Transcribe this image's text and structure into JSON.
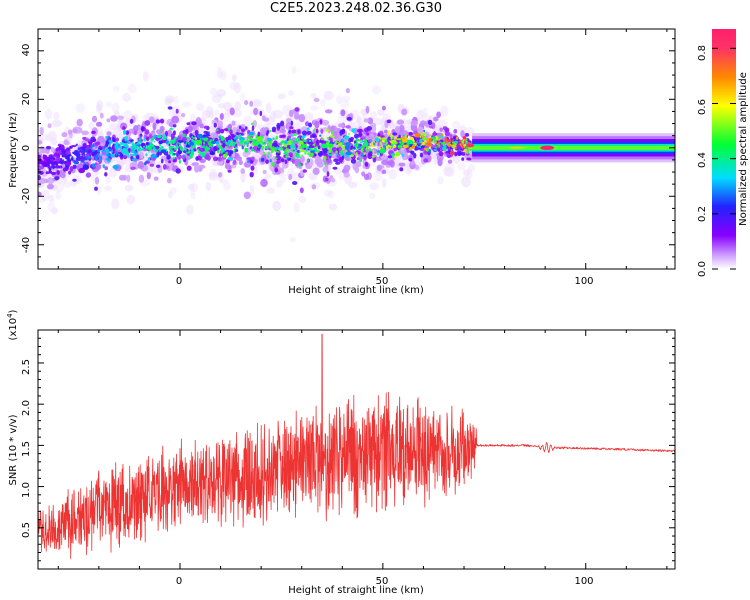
{
  "title": "C2E5.2023.248.02.36.G30",
  "colors": {
    "snr_line": "#ee3333",
    "colormap": [
      "#ffffff",
      "#cc99ff",
      "#8800ff",
      "#2222ff",
      "#00ddff",
      "#00ff33",
      "#ffff00",
      "#ff8800",
      "#ff3366",
      "#ff1f6b"
    ]
  },
  "chart_data": [
    {
      "type": "heatmap",
      "name": "spectrogram",
      "xlabel": "Height of straight line (km)",
      "ylabel": "Frequency (Hz)",
      "xlim": [
        -35,
        122
      ],
      "ylim": [
        -50,
        49
      ],
      "xticks": [
        "0",
        "50",
        "100"
      ],
      "yticks": [
        "40",
        "20",
        "0",
        "-20",
        "-40"
      ],
      "colorbar": {
        "label": "Normalized spectral amplitude",
        "range": [
          0,
          0.87
        ],
        "ticks": [
          "0.0",
          "0.2",
          "0.4",
          "0.6",
          "0.8"
        ]
      },
      "ridge": {
        "x": [
          -35,
          -25,
          -15,
          0,
          15,
          30,
          45,
          60,
          72,
          73,
          90,
          122
        ],
        "center_hz": [
          -7,
          -3,
          0,
          1,
          2,
          0,
          1,
          2,
          1,
          0,
          0,
          0
        ],
        "spread_hz": [
          8,
          9,
          9,
          10,
          11,
          12,
          10,
          7,
          5,
          3,
          3,
          3
        ],
        "peak_amplitude": [
          0.2,
          0.3,
          0.4,
          0.45,
          0.5,
          0.5,
          0.55,
          0.65,
          0.8,
          0.3,
          0.87,
          0.3
        ]
      }
    },
    {
      "type": "line",
      "name": "snr",
      "xlabel": "Height of straight line (km)",
      "ylabel": "SNR (10 * v/v)",
      "multiplier": "(x10",
      "multiplier_exp": "4",
      "multiplier_close": ")",
      "xlim": [
        -35,
        122
      ],
      "ylim": [
        0,
        2.9
      ],
      "xticks": [
        "0",
        "50",
        "100"
      ],
      "yticks": [
        "0.5",
        "1.0",
        "1.5",
        "2.0",
        "2.5"
      ],
      "envelope": {
        "x": [
          -35,
          -25,
          -15,
          0,
          10,
          20,
          30,
          35,
          40,
          50,
          60,
          70,
          73
        ],
        "mean": [
          0.45,
          0.6,
          0.8,
          1.0,
          1.05,
          1.15,
          1.3,
          1.35,
          1.35,
          1.4,
          1.45,
          1.45,
          1.45
        ],
        "spread": [
          0.3,
          0.5,
          0.6,
          0.6,
          0.65,
          0.7,
          0.75,
          0.8,
          0.8,
          0.8,
          0.75,
          0.6,
          0.3
        ]
      },
      "flat_segment": {
        "x": [
          73,
          85,
          90,
          95,
          110,
          122
        ],
        "y": [
          1.5,
          1.5,
          1.47,
          1.47,
          1.45,
          1.43
        ]
      },
      "spike": {
        "x": 35,
        "y": 2.9
      }
    }
  ]
}
